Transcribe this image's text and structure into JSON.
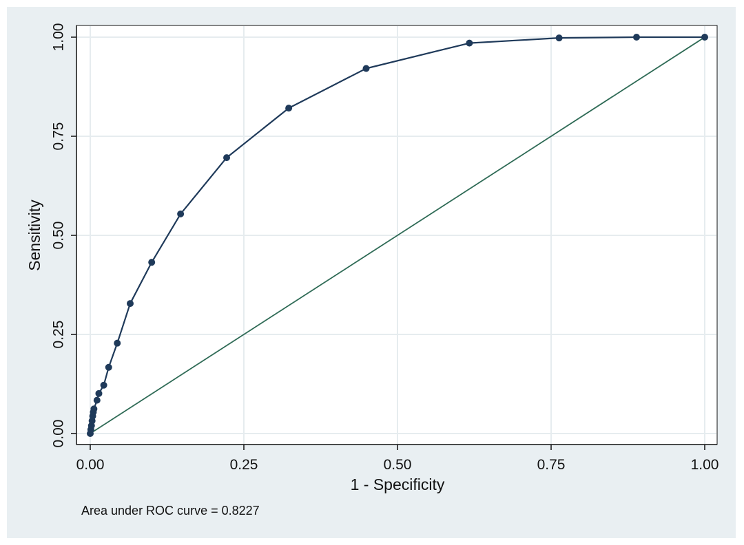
{
  "chart_data": {
    "type": "line",
    "xlabel": "1 - Specificity",
    "ylabel": "Sensitivity",
    "xlim": [
      0,
      1
    ],
    "ylim": [
      0,
      1
    ],
    "xticks": [
      "0.00",
      "0.25",
      "0.50",
      "0.75",
      "1.00"
    ],
    "yticks": [
      "0.00",
      "0.25",
      "0.50",
      "0.75",
      "1.00"
    ],
    "grid": true,
    "legend": "none",
    "annotation": "Area under ROC curve = 0.8227",
    "series": [
      {
        "values_x": [
          0.0,
          0.001,
          0.002,
          0.003,
          0.004,
          0.005,
          0.006,
          0.011,
          0.014,
          0.022,
          0.03,
          0.044,
          0.065,
          0.1,
          0.147,
          0.222,
          0.323,
          0.449,
          0.617,
          0.763,
          0.889,
          1.0
        ],
        "values_y": [
          0.0,
          0.01,
          0.02,
          0.032,
          0.044,
          0.054,
          0.062,
          0.084,
          0.101,
          0.122,
          0.167,
          0.228,
          0.328,
          0.432,
          0.554,
          0.696,
          0.821,
          0.921,
          0.985,
          0.998,
          1.0,
          1.0
        ],
        "color": "#1f3a5a",
        "markers": true
      },
      {
        "values_x": [
          0,
          1
        ],
        "values_y": [
          0,
          1
        ],
        "color": "#2f6b56",
        "markers": false
      }
    ],
    "colors": {
      "background": "#e9eff2",
      "plot_area": "#ffffff",
      "grid": "#e6ecef",
      "axis": "#111111"
    }
  }
}
